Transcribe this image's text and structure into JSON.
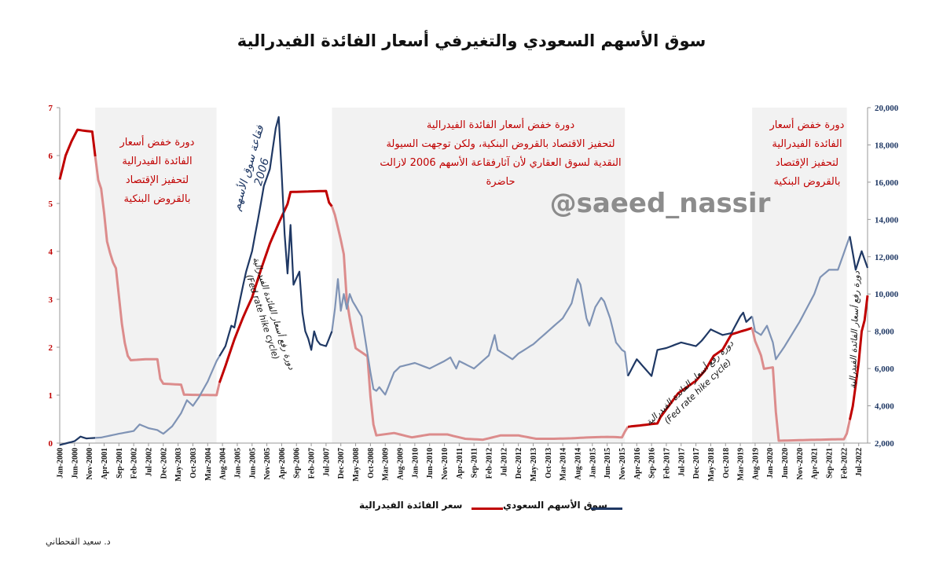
{
  "title": "سوق الأسهم السعودي والتغيرفي أسعار الفائدة الفيدرالية",
  "watermark": "@saeed_nassir",
  "author": "د. سعيد القحطاني",
  "legend": {
    "fed_label": "سعر الفائدة الفيدرالية",
    "tasi_label": "سوق الأسهم السعودي"
  },
  "annotations": {
    "cut_cycle_1": [
      "دورة خفض أسعار",
      "الفائدة الفيدرالية",
      "لتحفيز الإقتصاد",
      "بالقروض البنكية"
    ],
    "cut_cycle_2": [
      "دورة خفض أسعار الفائدة الفيدرالية",
      "لتحفيز الاقتصاد بالقروض البنكية، ولكن توجهت السيولة",
      "النقدية لسوق العقاري لأن آثارفقاعة الأسهم 2006 لازالت",
      "حاضرة"
    ],
    "cut_cycle_3": [
      "دورة خفض أسعار",
      "الفائدة الفيدرالية",
      "لتحفيز الإقتصاد",
      "بالقروض البنكية"
    ],
    "bubble_2006": [
      "فقاعة سوق الأسهم",
      "2006"
    ],
    "hike_1": [
      "دورة رفع أسعار الفائدة الفيدرالية",
      "(Fed rate hike cycle)"
    ],
    "hike_2": [
      "دورة رفع أسعار الفائدة الفيدرالية",
      "(Fed rate hike cycle)"
    ],
    "hike_3": [
      "دورة رفع أسعار الفائدة الفيدرالية"
    ]
  },
  "colors": {
    "fed": "#c00000",
    "fed_faded": "#dc8c8c",
    "tasi": "#1f3864",
    "tasi_faded": "#7f93b5",
    "shade": "#f2f2f2",
    "annotation": "#c00000"
  },
  "chart_data": {
    "type": "line",
    "x_tick_labels": [
      "Jan-2000",
      "Jun-2000",
      "Nov-2000",
      "Apr-2001",
      "Sep-2001",
      "Feb-2002",
      "Jul-2002",
      "Dec-2002",
      "May-2003",
      "Oct-2003",
      "Mar-2004",
      "Aug-2004",
      "Jan-2005",
      "Jun-2005",
      "Nov-2005",
      "Apr-2006",
      "Sep-2006",
      "Feb-2007",
      "Jul-2007",
      "Dec-2007",
      "May-2008",
      "Oct-2008",
      "Mar-2009",
      "Aug-2009",
      "Jan-2010",
      "Jun-2010",
      "Nov-2010",
      "Apr-2011",
      "Sep-2011",
      "Feb-2012",
      "Jul-2012",
      "Dec-2012",
      "May-2013",
      "Oct-2013",
      "Mar-2014",
      "Aug-2014",
      "Jan-2015",
      "Jun-2015",
      "Nov-2015",
      "Apr-2016",
      "Sep-2016",
      "Feb-2017",
      "Jul-2017",
      "Dec-2017",
      "May-2018",
      "Oct-2018",
      "Mar-2019",
      "Aug-2019",
      "Jan-2020",
      "Jun-2020",
      "Nov-2020",
      "Apr-2021",
      "Sep-2021",
      "Feb-2022",
      "Jul-2022"
    ],
    "x_range": [
      "Jan-2000",
      "Oct-2022"
    ],
    "y_left": {
      "min": 0,
      "max": 7,
      "ticks": [
        "0",
        "1",
        "2",
        "3",
        "4",
        "5",
        "6",
        "7"
      ]
    },
    "y_right": {
      "min": 2000,
      "max": 20000,
      "ticks": [
        "2,000",
        "4,000",
        "6,000",
        "8,000",
        "10,000",
        "12,000",
        "14,000",
        "16,000",
        "18,000",
        "20,000"
      ]
    },
    "shaded_periods": [
      [
        "Jan-2001",
        "Jun-2004"
      ],
      [
        "Sep-2007",
        "Dec-2015"
      ],
      [
        "Jul-2019",
        "Mar-2022"
      ]
    ],
    "series": [
      {
        "name": "سعر الفائدة الفيدرالية",
        "axis": "left",
        "points": [
          [
            "Jan-2000",
            5.5
          ],
          [
            "Mar-2000",
            6.0
          ],
          [
            "May-2000",
            6.3
          ],
          [
            "Jul-2000",
            6.54
          ],
          [
            "Sep-2000",
            6.52
          ],
          [
            "Dec-2000",
            6.5
          ],
          [
            "Jan-2001",
            5.98
          ],
          [
            "Feb-2001",
            5.49
          ],
          [
            "Mar-2001",
            5.31
          ],
          [
            "Apr-2001",
            4.8
          ],
          [
            "May-2001",
            4.21
          ],
          [
            "Jun-2001",
            3.97
          ],
          [
            "Jul-2001",
            3.77
          ],
          [
            "Aug-2001",
            3.65
          ],
          [
            "Sep-2001",
            3.07
          ],
          [
            "Oct-2001",
            2.49
          ],
          [
            "Nov-2001",
            2.09
          ],
          [
            "Dec-2001",
            1.82
          ],
          [
            "Jan-2002",
            1.73
          ],
          [
            "Jun-2002",
            1.75
          ],
          [
            "Oct-2002",
            1.75
          ],
          [
            "Nov-2002",
            1.34
          ],
          [
            "Dec-2002",
            1.24
          ],
          [
            "Jun-2003",
            1.22
          ],
          [
            "Jul-2003",
            1.01
          ],
          [
            "Jun-2004",
            1.0
          ],
          [
            "Jul-2004",
            1.26
          ],
          [
            "Sep-2004",
            1.61
          ],
          [
            "Dec-2004",
            2.16
          ],
          [
            "Mar-2005",
            2.63
          ],
          [
            "Jun-2005",
            3.04
          ],
          [
            "Sep-2005",
            3.62
          ],
          [
            "Dec-2005",
            4.16
          ],
          [
            "Mar-2006",
            4.59
          ],
          [
            "Jun-2006",
            4.99
          ],
          [
            "Jul-2006",
            5.24
          ],
          [
            "Jul-2007",
            5.26
          ],
          [
            "Aug-2007",
            5.02
          ],
          [
            "Sep-2007",
            4.94
          ],
          [
            "Oct-2007",
            4.76
          ],
          [
            "Dec-2007",
            4.24
          ],
          [
            "Jan-2008",
            3.94
          ],
          [
            "Feb-2008",
            2.98
          ],
          [
            "Mar-2008",
            2.61
          ],
          [
            "Apr-2008",
            2.28
          ],
          [
            "May-2008",
            1.98
          ],
          [
            "Sep-2008",
            1.81
          ],
          [
            "Oct-2008",
            0.97
          ],
          [
            "Nov-2008",
            0.39
          ],
          [
            "Dec-2008",
            0.16
          ],
          [
            "Jun-2009",
            0.21
          ],
          [
            "Dec-2009",
            0.12
          ],
          [
            "Jun-2010",
            0.18
          ],
          [
            "Dec-2010",
            0.18
          ],
          [
            "Jun-2011",
            0.09
          ],
          [
            "Dec-2011",
            0.07
          ],
          [
            "Jun-2012",
            0.16
          ],
          [
            "Dec-2012",
            0.16
          ],
          [
            "Jun-2013",
            0.09
          ],
          [
            "Dec-2013",
            0.09
          ],
          [
            "Jun-2014",
            0.1
          ],
          [
            "Dec-2014",
            0.12
          ],
          [
            "Jun-2015",
            0.13
          ],
          [
            "Nov-2015",
            0.12
          ],
          [
            "Dec-2015",
            0.24
          ],
          [
            "Jan-2016",
            0.34
          ],
          [
            "Nov-2016",
            0.41
          ],
          [
            "Dec-2016",
            0.54
          ],
          [
            "Mar-2017",
            0.79
          ],
          [
            "Jun-2017",
            1.04
          ],
          [
            "Dec-2017",
            1.3
          ],
          [
            "Mar-2018",
            1.51
          ],
          [
            "Jun-2018",
            1.82
          ],
          [
            "Sep-2018",
            1.95
          ],
          [
            "Dec-2018",
            2.27
          ],
          [
            "Jul-2019",
            2.4
          ],
          [
            "Aug-2019",
            2.13
          ],
          [
            "Oct-2019",
            1.83
          ],
          [
            "Nov-2019",
            1.55
          ],
          [
            "Feb-2020",
            1.58
          ],
          [
            "Mar-2020",
            0.65
          ],
          [
            "Apr-2020",
            0.05
          ],
          [
            "Dec-2021",
            0.08
          ],
          [
            "Feb-2022",
            0.08
          ],
          [
            "Mar-2022",
            0.2
          ],
          [
            "May-2022",
            0.77
          ],
          [
            "Jun-2022",
            1.21
          ],
          [
            "Jul-2022",
            1.68
          ],
          [
            "Aug-2022",
            2.33
          ],
          [
            "Sep-2022",
            2.56
          ],
          [
            "Oct-2022",
            3.08
          ]
        ]
      },
      {
        "name": "سوق الأسهم السعودي",
        "axis": "right",
        "points": [
          [
            "Jan-2000",
            1900
          ],
          [
            "Jun-2000",
            2100
          ],
          [
            "Aug-2000",
            2350
          ],
          [
            "Oct-2000",
            2250
          ],
          [
            "Mar-2001",
            2300
          ],
          [
            "Sep-2001",
            2500
          ],
          [
            "Feb-2002",
            2650
          ],
          [
            "Apr-2002",
            3000
          ],
          [
            "Jul-2002",
            2800
          ],
          [
            "Oct-2002",
            2700
          ],
          [
            "Dec-2002",
            2500
          ],
          [
            "Mar-2003",
            2900
          ],
          [
            "Jun-2003",
            3600
          ],
          [
            "Aug-2003",
            4300
          ],
          [
            "Oct-2003",
            4000
          ],
          [
            "Dec-2003",
            4450
          ],
          [
            "Mar-2004",
            5300
          ],
          [
            "Jun-2004",
            6400
          ],
          [
            "Sep-2004",
            7200
          ],
          [
            "Nov-2004",
            8300
          ],
          [
            "Dec-2004",
            8200
          ],
          [
            "Mar-2005",
            10500
          ],
          [
            "Apr-2005",
            11200
          ],
          [
            "Jun-2005",
            12300
          ],
          [
            "Aug-2005",
            14000
          ],
          [
            "Oct-2005",
            15800
          ],
          [
            "Dec-2005",
            16700
          ],
          [
            "Feb-2006",
            18900
          ],
          [
            "Mar-2006",
            19500
          ],
          [
            "Apr-2006",
            16500
          ],
          [
            "May-2006",
            13200
          ],
          [
            "Jun-2006",
            11100
          ],
          [
            "Jul-2006",
            13700
          ],
          [
            "Aug-2006",
            10500
          ],
          [
            "Oct-2006",
            11200
          ],
          [
            "Nov-2006",
            9000
          ],
          [
            "Dec-2006",
            8000
          ],
          [
            "Jan-2007",
            7600
          ],
          [
            "Feb-2007",
            7000
          ],
          [
            "Mar-2007",
            8000
          ],
          [
            "Apr-2007",
            7500
          ],
          [
            "May-2007",
            7300
          ],
          [
            "Jul-2007",
            7200
          ],
          [
            "Sep-2007",
            8000
          ],
          [
            "Oct-2007",
            9200
          ],
          [
            "Nov-2007",
            10800
          ],
          [
            "Dec-2007",
            9100
          ],
          [
            "Jan-2008",
            10000
          ],
          [
            "Feb-2008",
            9200
          ],
          [
            "Mar-2008",
            10000
          ],
          [
            "Apr-2008",
            9600
          ],
          [
            "Jul-2008",
            8800
          ],
          [
            "Aug-2008",
            7800
          ],
          [
            "Oct-2008",
            5800
          ],
          [
            "Nov-2008",
            4900
          ],
          [
            "Dec-2008",
            4800
          ],
          [
            "Jan-2009",
            5000
          ],
          [
            "Mar-2009",
            4600
          ],
          [
            "Jun-2009",
            5800
          ],
          [
            "Aug-2009",
            6100
          ],
          [
            "Jan-2010",
            6300
          ],
          [
            "Jun-2010",
            6000
          ],
          [
            "Nov-2010",
            6400
          ],
          [
            "Jan-2011",
            6600
          ],
          [
            "Mar-2011",
            6000
          ],
          [
            "Apr-2011",
            6400
          ],
          [
            "Sep-2011",
            6000
          ],
          [
            "Feb-2012",
            6700
          ],
          [
            "Apr-2012",
            7800
          ],
          [
            "May-2012",
            7000
          ],
          [
            "Jul-2012",
            6800
          ],
          [
            "Oct-2012",
            6500
          ],
          [
            "Dec-2012",
            6800
          ],
          [
            "May-2013",
            7300
          ],
          [
            "Oct-2013",
            8000
          ],
          [
            "Mar-2014",
            8700
          ],
          [
            "Jun-2014",
            9500
          ],
          [
            "Aug-2014",
            10800
          ],
          [
            "Sep-2014",
            10500
          ],
          [
            "Nov-2014",
            8700
          ],
          [
            "Dec-2014",
            8300
          ],
          [
            "Feb-2015",
            9300
          ],
          [
            "Apr-2015",
            9800
          ],
          [
            "May-2015",
            9600
          ],
          [
            "Jul-2015",
            8700
          ],
          [
            "Sep-2015",
            7400
          ],
          [
            "Nov-2015",
            7000
          ],
          [
            "Dec-2015",
            6900
          ],
          [
            "Jan-2016",
            5600
          ],
          [
            "Apr-2016",
            6500
          ],
          [
            "Sep-2016",
            5600
          ],
          [
            "Nov-2016",
            7000
          ],
          [
            "Feb-2017",
            7100
          ],
          [
            "Jul-2017",
            7400
          ],
          [
            "Dec-2017",
            7200
          ],
          [
            "Feb-2018",
            7500
          ],
          [
            "May-2018",
            8100
          ],
          [
            "Sep-2018",
            7800
          ],
          [
            "Dec-2018",
            7900
          ],
          [
            "Mar-2019",
            8800
          ],
          [
            "Apr-2019",
            9000
          ],
          [
            "May-2019",
            8500
          ],
          [
            "Jul-2019",
            8800
          ],
          [
            "Aug-2019",
            8000
          ],
          [
            "Oct-2019",
            7800
          ],
          [
            "Dec-2019",
            8300
          ],
          [
            "Feb-2020",
            7400
          ],
          [
            "Mar-2020",
            6500
          ],
          [
            "Jun-2020",
            7200
          ],
          [
            "Nov-2020",
            8500
          ],
          [
            "Apr-2021",
            10000
          ],
          [
            "Jun-2021",
            10900
          ],
          [
            "Sep-2021",
            11300
          ],
          [
            "Dec-2021",
            11300
          ],
          [
            "Feb-2022",
            12200
          ],
          [
            "Apr-2022",
            13100
          ],
          [
            "Jun-2022",
            11300
          ],
          [
            "Aug-2022",
            12300
          ],
          [
            "Oct-2022",
            11400
          ]
        ]
      }
    ],
    "grid": false,
    "legend_position": "bottom"
  }
}
